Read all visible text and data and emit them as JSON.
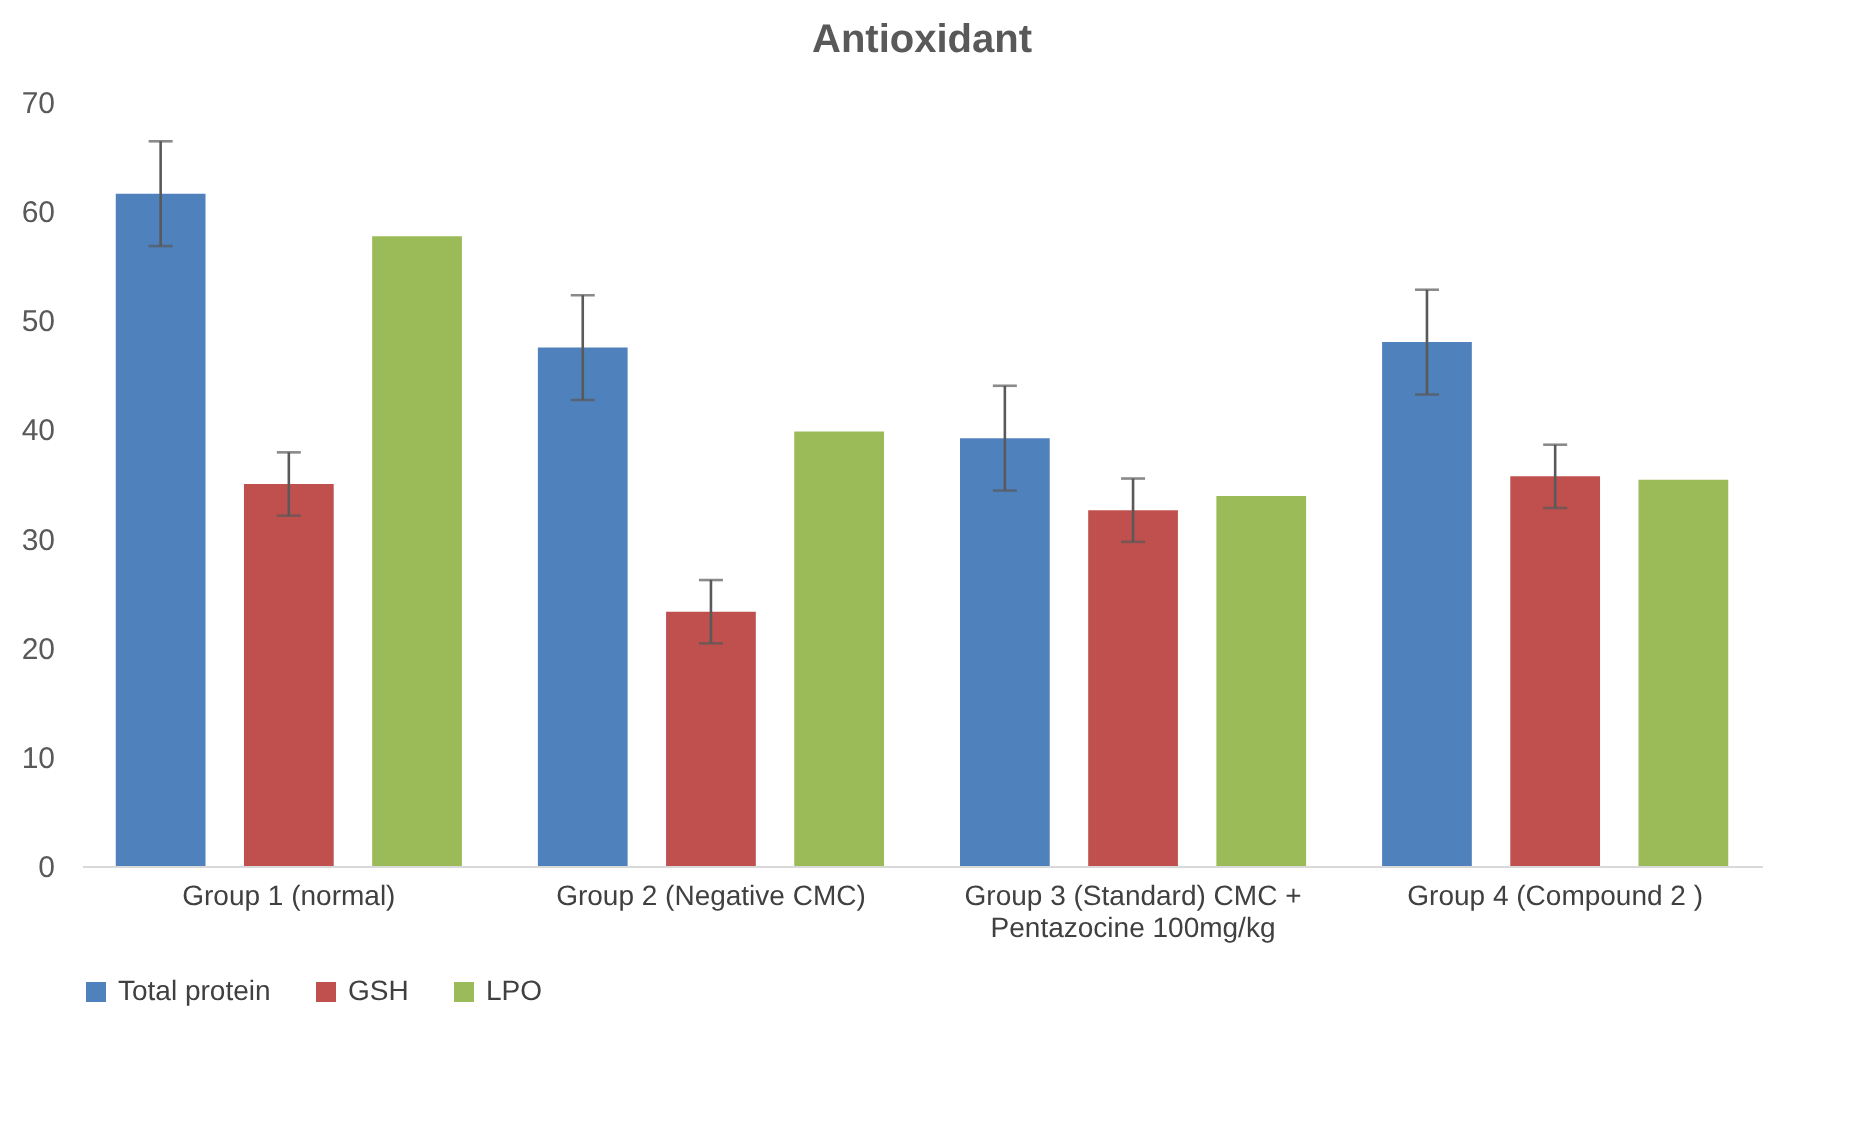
{
  "chart_data": {
    "type": "bar",
    "title": "Antioxidant",
    "categories": [
      "Group 1 (normal)",
      "Group 2 (Negative CMC)",
      "Group 3 (Standard) CMC + Pentazocine 100mg/kg",
      "Group 4 (Compound 2  )"
    ],
    "series": [
      {
        "name": "Total protein",
        "color": "#4f81bd",
        "values": [
          61.6,
          47.5,
          39.2,
          48.0
        ],
        "errors": [
          4.8,
          4.8,
          4.8,
          4.8
        ]
      },
      {
        "name": "GSH",
        "color": "#c0504d",
        "values": [
          35.0,
          23.3,
          32.6,
          35.7
        ],
        "errors": [
          2.9,
          2.9,
          2.9,
          2.9
        ]
      },
      {
        "name": "LPO",
        "color": "#9bbb59",
        "values": [
          57.7,
          39.8,
          33.9,
          35.4
        ]
      }
    ],
    "ylim": [
      0,
      70
    ],
    "yticks": [
      0,
      10,
      20,
      30,
      40,
      50,
      60,
      70
    ],
    "grid": false,
    "legend": "bottom"
  }
}
